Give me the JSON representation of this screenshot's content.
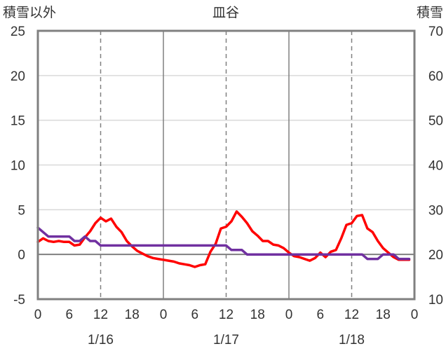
{
  "chart_data": {
    "type": "line",
    "title": "皿谷",
    "left_axis_label": "積雪以外",
    "right_axis_label": "積雪",
    "y_left": {
      "min": -5,
      "max": 25,
      "ticks": [
        -5,
        0,
        5,
        10,
        15,
        20,
        25
      ]
    },
    "y_right": {
      "min": 10,
      "max": 70,
      "ticks": [
        10,
        20,
        30,
        40,
        50,
        60,
        70
      ]
    },
    "x": {
      "min": 0,
      "max": 72,
      "unit": "hours from 1/16 00:00"
    },
    "x_ticks": [
      {
        "pos": 0,
        "label": "0"
      },
      {
        "pos": 6,
        "label": "6"
      },
      {
        "pos": 12,
        "label": "12"
      },
      {
        "pos": 18,
        "label": "18"
      },
      {
        "pos": 24,
        "label": "0"
      },
      {
        "pos": 30,
        "label": "6"
      },
      {
        "pos": 36,
        "label": "12"
      },
      {
        "pos": 42,
        "label": "18"
      },
      {
        "pos": 48,
        "label": "0"
      },
      {
        "pos": 54,
        "label": "6"
      },
      {
        "pos": 60,
        "label": "12"
      },
      {
        "pos": 66,
        "label": "18"
      },
      {
        "pos": 72,
        "label": "0"
      }
    ],
    "date_labels": [
      {
        "pos": 12,
        "label": "1/16"
      },
      {
        "pos": 36,
        "label": "1/17"
      },
      {
        "pos": 60,
        "label": "1/18"
      }
    ],
    "day_boundaries": [
      24,
      48
    ],
    "noon_lines": [
      12,
      36,
      60
    ],
    "grid_y": true,
    "series": [
      {
        "axis": "left",
        "color": "#ff0000",
        "x": [
          0,
          1,
          2,
          3,
          4,
          5,
          6,
          7,
          8,
          9,
          10,
          11,
          12,
          13,
          14,
          15,
          16,
          17,
          18,
          19,
          20,
          21,
          22,
          23,
          24,
          25,
          26,
          27,
          28,
          29,
          30,
          31,
          32,
          33,
          34,
          35,
          36,
          37,
          38,
          39,
          40,
          41,
          42,
          43,
          44,
          45,
          46,
          47,
          48,
          49,
          50,
          51,
          52,
          53,
          54,
          55,
          56,
          57,
          58,
          59,
          60,
          61,
          62,
          63,
          64,
          65,
          66,
          67,
          68,
          69,
          70,
          71
        ],
        "values": [
          1.4,
          1.8,
          1.5,
          1.4,
          1.5,
          1.4,
          1.4,
          1.0,
          1.1,
          1.9,
          2.6,
          3.5,
          4.1,
          3.7,
          4.0,
          3.1,
          2.5,
          1.5,
          0.9,
          0.4,
          0.1,
          -0.2,
          -0.4,
          -0.5,
          -0.6,
          -0.7,
          -0.8,
          -1.0,
          -1.1,
          -1.2,
          -1.4,
          -1.2,
          -1.1,
          0.3,
          1.2,
          2.9,
          3.1,
          3.7,
          4.8,
          4.2,
          3.5,
          2.6,
          2.1,
          1.5,
          1.5,
          1.1,
          1.0,
          0.7,
          0.2,
          -0.2,
          -0.3,
          -0.5,
          -0.7,
          -0.4,
          0.2,
          -0.3,
          0.3,
          0.5,
          1.8,
          3.3,
          3.5,
          4.3,
          4.4,
          2.9,
          2.5,
          1.5,
          0.7,
          0.2,
          -0.3,
          -0.6,
          -0.6,
          -0.6
        ]
      },
      {
        "axis": "right",
        "color": "#7030a0",
        "x": [
          0,
          1,
          2,
          3,
          4,
          5,
          6,
          7,
          8,
          9,
          10,
          11,
          12,
          13,
          14,
          15,
          16,
          17,
          18,
          19,
          20,
          21,
          22,
          23,
          24,
          25,
          26,
          27,
          28,
          29,
          30,
          31,
          32,
          33,
          34,
          35,
          36,
          37,
          38,
          39,
          40,
          41,
          42,
          43,
          44,
          45,
          46,
          47,
          48,
          49,
          50,
          51,
          52,
          53,
          54,
          55,
          56,
          57,
          58,
          59,
          60,
          61,
          62,
          63,
          64,
          65,
          66,
          67,
          68,
          69,
          70,
          71
        ],
        "values": [
          26,
          25,
          24,
          24,
          24,
          24,
          24,
          23,
          23,
          24,
          23,
          23,
          22,
          22,
          22,
          22,
          22,
          22,
          22,
          22,
          22,
          22,
          22,
          22,
          22,
          22,
          22,
          22,
          22,
          22,
          22,
          22,
          22,
          22,
          22,
          22,
          22,
          21,
          21,
          21,
          20,
          20,
          20,
          20,
          20,
          20,
          20,
          20,
          20,
          20,
          20,
          20,
          20,
          20,
          20,
          20,
          20,
          20,
          20,
          20,
          20,
          20,
          20,
          19,
          19,
          19,
          20,
          20,
          20,
          19,
          19,
          19
        ]
      }
    ]
  }
}
